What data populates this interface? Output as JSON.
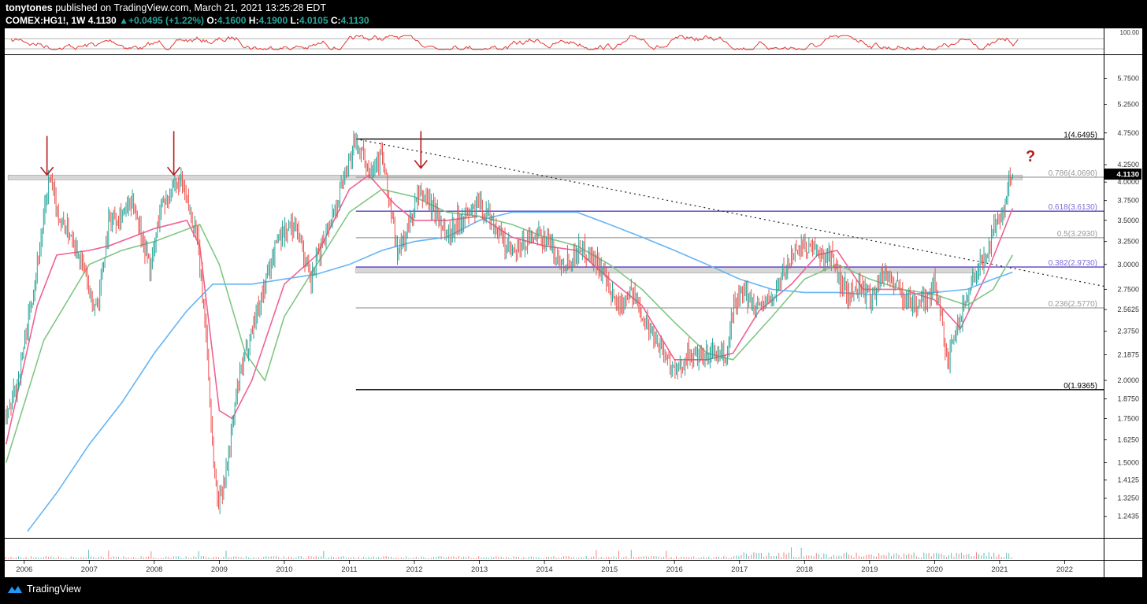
{
  "header": {
    "author": "tonytones",
    "published_text": "published on TradingView.com, March 21, 2021 13:25:28 EDT",
    "symbol": "COMEX:HG1!, 1W",
    "last": "4.1130",
    "change": "+0.0495 (+1.22%)",
    "ohlc": [
      {
        "label": "O:",
        "value": "4.1600"
      },
      {
        "label": "H:",
        "value": "4.1900"
      },
      {
        "label": "L:",
        "value": "4.0105"
      },
      {
        "label": "C:",
        "value": "4.1130"
      }
    ]
  },
  "footer": {
    "brand": "TradingView"
  },
  "colors": {
    "candle_up": "#26a69a",
    "candle_down": "#ef5350",
    "ma_fast": "#f06292",
    "ma_mid": "#81c784",
    "ma_slow": "#64b5f6",
    "fib_purple": "#5b3fc4",
    "arrow": "#b71c1c",
    "rsi": "#e53935"
  },
  "chart_data": {
    "type": "candlestick",
    "x_axis": {
      "range": [
        2005.7,
        2022.6
      ],
      "ticks": [
        "2006",
        "2007",
        "2008",
        "2009",
        "2010",
        "2011",
        "2012",
        "2013",
        "2014",
        "2015",
        "2016",
        "2017",
        "2018",
        "2019",
        "2020",
        "2021",
        "2022"
      ]
    },
    "y_axis": {
      "scale": "log",
      "range": [
        1.16,
        6.2
      ],
      "ticks": [
        "5.7500",
        "5.2500",
        "4.7500",
        "4.2500",
        "4.0000",
        "3.7500",
        "3.5000",
        "3.2500",
        "3.0000",
        "2.7500",
        "2.5625",
        "2.3750",
        "2.1875",
        "2.0000",
        "1.8750",
        "1.7500",
        "1.6250",
        "1.5000",
        "1.4125",
        "1.3250",
        "1.2435"
      ],
      "current_price_label": "4.1130"
    },
    "price_path": [
      [
        2005.72,
        1.73
      ],
      [
        2005.9,
        2.0
      ],
      [
        2006.1,
        2.6
      ],
      [
        2006.3,
        3.5
      ],
      [
        2006.38,
        4.05
      ],
      [
        2006.55,
        3.5
      ],
      [
        2006.75,
        3.3
      ],
      [
        2006.95,
        2.9
      ],
      [
        2007.05,
        2.55
      ],
      [
        2007.15,
        2.7
      ],
      [
        2007.3,
        3.5
      ],
      [
        2007.5,
        3.6
      ],
      [
        2007.7,
        3.7
      ],
      [
        2007.85,
        3.2
      ],
      [
        2007.95,
        2.95
      ],
      [
        2008.1,
        3.7
      ],
      [
        2008.25,
        3.85
      ],
      [
        2008.4,
        4.0
      ],
      [
        2008.55,
        3.6
      ],
      [
        2008.65,
        3.35
      ],
      [
        2008.8,
        2.35
      ],
      [
        2008.9,
        1.55
      ],
      [
        2008.98,
        1.3
      ],
      [
        2009.1,
        1.45
      ],
      [
        2009.3,
        2.0
      ],
      [
        2009.5,
        2.4
      ],
      [
        2009.7,
        2.8
      ],
      [
        2009.9,
        3.3
      ],
      [
        2010.05,
        3.4
      ],
      [
        2010.2,
        3.45
      ],
      [
        2010.3,
        3.1
      ],
      [
        2010.4,
        2.8
      ],
      [
        2010.6,
        3.3
      ],
      [
        2010.8,
        3.7
      ],
      [
        2010.95,
        4.2
      ],
      [
        2011.1,
        4.6
      ],
      [
        2011.3,
        4.2
      ],
      [
        2011.5,
        4.4
      ],
      [
        2011.6,
        3.8
      ],
      [
        2011.75,
        3.1
      ],
      [
        2011.9,
        3.4
      ],
      [
        2012.05,
        3.8
      ],
      [
        2012.2,
        3.8
      ],
      [
        2012.4,
        3.5
      ],
      [
        2012.5,
        3.3
      ],
      [
        2012.65,
        3.5
      ],
      [
        2012.85,
        3.6
      ],
      [
        2013.0,
        3.7
      ],
      [
        2013.2,
        3.5
      ],
      [
        2013.4,
        3.2
      ],
      [
        2013.55,
        3.1
      ],
      [
        2013.7,
        3.25
      ],
      [
        2013.9,
        3.3
      ],
      [
        2014.05,
        3.3
      ],
      [
        2014.2,
        3.05
      ],
      [
        2014.4,
        3.05
      ],
      [
        2014.55,
        3.2
      ],
      [
        2014.7,
        3.1
      ],
      [
        2014.85,
        3.0
      ],
      [
        2015.0,
        2.7
      ],
      [
        2015.15,
        2.6
      ],
      [
        2015.3,
        2.75
      ],
      [
        2015.45,
        2.6
      ],
      [
        2015.6,
        2.4
      ],
      [
        2015.8,
        2.25
      ],
      [
        2015.95,
        2.1
      ],
      [
        2016.05,
        2.05
      ],
      [
        2016.2,
        2.2
      ],
      [
        2016.4,
        2.15
      ],
      [
        2016.6,
        2.2
      ],
      [
        2016.8,
        2.15
      ],
      [
        2016.9,
        2.6
      ],
      [
        2017.05,
        2.7
      ],
      [
        2017.3,
        2.6
      ],
      [
        2017.5,
        2.65
      ],
      [
        2017.7,
        2.95
      ],
      [
        2017.9,
        3.2
      ],
      [
        2018.05,
        3.2
      ],
      [
        2018.2,
        3.1
      ],
      [
        2018.4,
        3.1
      ],
      [
        2018.55,
        2.8
      ],
      [
        2018.7,
        2.7
      ],
      [
        2018.85,
        2.8
      ],
      [
        2019.0,
        2.65
      ],
      [
        2019.2,
        2.9
      ],
      [
        2019.35,
        2.85
      ],
      [
        2019.5,
        2.7
      ],
      [
        2019.7,
        2.6
      ],
      [
        2019.85,
        2.65
      ],
      [
        2020.0,
        2.8
      ],
      [
        2020.1,
        2.55
      ],
      [
        2020.2,
        2.1
      ],
      [
        2020.35,
        2.4
      ],
      [
        2020.5,
        2.7
      ],
      [
        2020.65,
        2.95
      ],
      [
        2020.8,
        3.1
      ],
      [
        2020.95,
        3.5
      ],
      [
        2021.0,
        3.55
      ],
      [
        2021.1,
        3.7
      ],
      [
        2021.15,
        4.15
      ],
      [
        2021.2,
        4.11
      ]
    ],
    "moving_averages": [
      {
        "color_key": "ma_fast",
        "points": [
          [
            2005.72,
            1.6
          ],
          [
            2006.2,
            2.6
          ],
          [
            2006.5,
            3.1
          ],
          [
            2007.0,
            3.15
          ],
          [
            2007.3,
            3.2
          ],
          [
            2008.0,
            3.4
          ],
          [
            2008.5,
            3.5
          ],
          [
            2008.7,
            3.2
          ],
          [
            2009.0,
            1.8
          ],
          [
            2009.2,
            1.75
          ],
          [
            2009.5,
            2.0
          ],
          [
            2010.0,
            2.8
          ],
          [
            2010.5,
            3.1
          ],
          [
            2011.0,
            3.9
          ],
          [
            2011.3,
            4.1
          ],
          [
            2011.7,
            3.7
          ],
          [
            2012.0,
            3.5
          ],
          [
            2012.5,
            3.5
          ],
          [
            2013.0,
            3.55
          ],
          [
            2013.5,
            3.3
          ],
          [
            2014.0,
            3.2
          ],
          [
            2014.5,
            3.15
          ],
          [
            2015.0,
            2.85
          ],
          [
            2015.5,
            2.6
          ],
          [
            2016.0,
            2.15
          ],
          [
            2016.5,
            2.15
          ],
          [
            2016.9,
            2.2
          ],
          [
            2017.3,
            2.55
          ],
          [
            2017.8,
            2.8
          ],
          [
            2018.2,
            3.1
          ],
          [
            2018.5,
            3.15
          ],
          [
            2018.9,
            2.75
          ],
          [
            2019.5,
            2.75
          ],
          [
            2020.0,
            2.65
          ],
          [
            2020.4,
            2.4
          ],
          [
            2020.8,
            2.9
          ],
          [
            2021.2,
            3.65
          ]
        ]
      },
      {
        "color_key": "ma_mid",
        "points": [
          [
            2005.72,
            1.5
          ],
          [
            2006.3,
            2.3
          ],
          [
            2007.0,
            3.0
          ],
          [
            2007.5,
            3.15
          ],
          [
            2008.0,
            3.25
          ],
          [
            2008.7,
            3.45
          ],
          [
            2009.0,
            3.0
          ],
          [
            2009.4,
            2.2
          ],
          [
            2009.7,
            2.0
          ],
          [
            2010.0,
            2.5
          ],
          [
            2010.5,
            3.0
          ],
          [
            2011.0,
            3.6
          ],
          [
            2011.5,
            3.9
          ],
          [
            2012.0,
            3.8
          ],
          [
            2012.5,
            3.6
          ],
          [
            2013.0,
            3.55
          ],
          [
            2013.5,
            3.45
          ],
          [
            2014.0,
            3.3
          ],
          [
            2014.5,
            3.2
          ],
          [
            2015.0,
            3.0
          ],
          [
            2015.5,
            2.75
          ],
          [
            2016.0,
            2.45
          ],
          [
            2016.5,
            2.2
          ],
          [
            2016.9,
            2.15
          ],
          [
            2017.5,
            2.5
          ],
          [
            2018.0,
            2.85
          ],
          [
            2018.5,
            3.0
          ],
          [
            2019.0,
            2.85
          ],
          [
            2019.5,
            2.75
          ],
          [
            2020.0,
            2.7
          ],
          [
            2020.5,
            2.6
          ],
          [
            2020.9,
            2.75
          ],
          [
            2021.2,
            3.1
          ]
        ]
      },
      {
        "color_key": "ma_slow",
        "points": [
          [
            2006.05,
            1.18
          ],
          [
            2006.5,
            1.35
          ],
          [
            2007.0,
            1.6
          ],
          [
            2007.5,
            1.85
          ],
          [
            2008.0,
            2.2
          ],
          [
            2008.5,
            2.55
          ],
          [
            2008.9,
            2.8
          ],
          [
            2009.5,
            2.8
          ],
          [
            2010.0,
            2.85
          ],
          [
            2010.5,
            2.9
          ],
          [
            2011.0,
            3.0
          ],
          [
            2011.5,
            3.15
          ],
          [
            2012.0,
            3.25
          ],
          [
            2012.5,
            3.3
          ],
          [
            2013.0,
            3.5
          ],
          [
            2013.5,
            3.6
          ],
          [
            2014.0,
            3.6
          ],
          [
            2014.5,
            3.6
          ],
          [
            2015.0,
            3.45
          ],
          [
            2015.5,
            3.3
          ],
          [
            2016.0,
            3.15
          ],
          [
            2016.5,
            3.0
          ],
          [
            2017.0,
            2.85
          ],
          [
            2017.5,
            2.75
          ],
          [
            2018.0,
            2.72
          ],
          [
            2018.5,
            2.72
          ],
          [
            2019.0,
            2.7
          ],
          [
            2019.5,
            2.7
          ],
          [
            2020.0,
            2.72
          ],
          [
            2020.5,
            2.75
          ],
          [
            2020.9,
            2.85
          ],
          [
            2021.2,
            2.92
          ]
        ]
      }
    ],
    "fib_levels": [
      {
        "label": "1(4.6495)",
        "value": 4.6495,
        "style": "black"
      },
      {
        "label": "0.786(4.0690)",
        "value": 4.069,
        "style": "gray"
      },
      {
        "label": "0.618(3.6130)",
        "value": 3.613,
        "style": "purple"
      },
      {
        "label": "0.5(3.2930)",
        "value": 3.293,
        "style": "gray"
      },
      {
        "label": "0.382(2.9730)",
        "value": 2.973,
        "style": "purple"
      },
      {
        "label": "0.236(2.5770)",
        "value": 2.577,
        "style": "gray"
      },
      {
        "label": "0(1.9365)",
        "value": 1.9365,
        "style": "black"
      }
    ],
    "fib_start_x": 2011.1,
    "shaded_zones": [
      {
        "x_start": 2005.75,
        "x_end": 2021.35,
        "y_low": 4.03,
        "y_high": 4.1
      },
      {
        "x_start": 2011.1,
        "x_end": 2020.6,
        "y_low": 2.91,
        "y_high": 2.97
      }
    ],
    "trendline": {
      "from": [
        2011.1,
        4.65
      ],
      "to": [
        2022.6,
        2.78
      ]
    },
    "arrows_down": [
      {
        "x": 2006.35,
        "y_top": 4.7,
        "y_bottom": 4.1
      },
      {
        "x": 2008.3,
        "y_top": 4.78,
        "y_bottom": 4.1
      },
      {
        "x": 2012.1,
        "y_top": 4.78,
        "y_bottom": 4.2
      }
    ],
    "annotation": {
      "text": "?",
      "x": 2021.4,
      "y": 4.3
    },
    "rsi_panel": {
      "label": "100.00"
    }
  }
}
